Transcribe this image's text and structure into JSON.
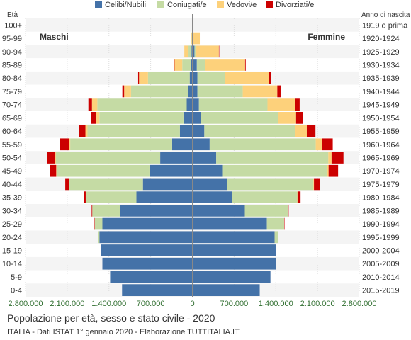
{
  "chart_data": {
    "type": "bar",
    "orientation": "horizontal-diverging",
    "title": "Popolazione per età, sesso e stato civile - 2020",
    "subtitle": "ITALIA - Dati ISTAT 1° gennaio 2020 - Elaborazione TUTTITALIA.IT",
    "left_axis_title": "Età",
    "right_axis_title": "Anno di nascita",
    "male_label": "Maschi",
    "female_label": "Femmine",
    "age_groups": [
      "100+",
      "95-99",
      "90-94",
      "85-89",
      "80-84",
      "75-79",
      "70-74",
      "65-69",
      "60-64",
      "55-59",
      "50-54",
      "45-49",
      "40-44",
      "35-39",
      "30-34",
      "25-29",
      "20-24",
      "15-19",
      "10-14",
      "5-9",
      "0-4"
    ],
    "birth_years": [
      "1919 o prima",
      "1920-1924",
      "1925-1929",
      "1930-1934",
      "1935-1939",
      "1940-1944",
      "1945-1949",
      "1950-1954",
      "1955-1959",
      "1960-1964",
      "1965-1969",
      "1970-1974",
      "1975-1979",
      "1980-1984",
      "1985-1989",
      "1990-1994",
      "1995-1999",
      "2000-2004",
      "2005-2009",
      "2010-2014",
      "2015-2019"
    ],
    "x_ticks": [
      {
        "value": -2800000,
        "label": "2.800.000"
      },
      {
        "value": -2100000,
        "label": "2.100.000"
      },
      {
        "value": -1400000,
        "label": "1.400.000"
      },
      {
        "value": -700000,
        "label": "700.000"
      },
      {
        "value": 0,
        "label": "0"
      },
      {
        "value": 700000,
        "label": "700.000"
      },
      {
        "value": 1400000,
        "label": "1.400.000"
      },
      {
        "value": 2100000,
        "label": "2.100.000"
      },
      {
        "value": 2800000,
        "label": "2.800.000"
      }
    ],
    "xlim": [
      -2800000,
      2800000
    ],
    "legend_position": "top",
    "series": [
      {
        "name": "Celibi/Nubili",
        "color": "#4472a8",
        "male": [
          2000,
          5000,
          15000,
          30000,
          45000,
          70000,
          95000,
          150000,
          210000,
          340000,
          540000,
          720000,
          830000,
          940000,
          1210000,
          1510000,
          1560000,
          1530000,
          1510000,
          1380000,
          1180000
        ],
        "female": [
          3000,
          10000,
          35000,
          75000,
          85000,
          85000,
          110000,
          140000,
          200000,
          290000,
          400000,
          500000,
          580000,
          670000,
          880000,
          1250000,
          1380000,
          1400000,
          1400000,
          1310000,
          1130000
        ]
      },
      {
        "name": "Coniugati/e",
        "color": "#c5dba4",
        "male": [
          1000,
          5000,
          50000,
          140000,
          700000,
          960000,
          1500000,
          1410000,
          1550000,
          1710000,
          1750000,
          1560000,
          1240000,
          850000,
          470000,
          130000,
          20000,
          0,
          0,
          0,
          0
        ],
        "female": [
          1000,
          5000,
          20000,
          140000,
          460000,
          760000,
          1150000,
          1300000,
          1530000,
          1780000,
          1880000,
          1760000,
          1450000,
          1090000,
          720000,
          290000,
          60000,
          5000,
          0,
          0,
          0
        ]
      },
      {
        "name": "Vedovi/e",
        "color": "#fdd17b",
        "male": [
          2000,
          15000,
          70000,
          130000,
          150000,
          115000,
          90000,
          60000,
          35000,
          20000,
          10000,
          5000,
          3000,
          0,
          0,
          0,
          0,
          0,
          0,
          0,
          0
        ],
        "female": [
          10000,
          110000,
          390000,
          670000,
          740000,
          580000,
          460000,
          300000,
          190000,
          100000,
          55000,
          25000,
          10000,
          5000,
          0,
          0,
          0,
          0,
          0,
          0,
          0
        ]
      },
      {
        "name": "Divorziati/e",
        "color": "#cc0000",
        "male": [
          0,
          0,
          0,
          5000,
          15000,
          30000,
          60000,
          80000,
          110000,
          150000,
          140000,
          110000,
          60000,
          30000,
          10000,
          3000,
          0,
          0,
          0,
          0,
          0
        ],
        "female": [
          0,
          0,
          3000,
          10000,
          30000,
          55000,
          80000,
          110000,
          145000,
          185000,
          200000,
          160000,
          100000,
          50000,
          15000,
          5000,
          0,
          0,
          0,
          0,
          0
        ]
      }
    ]
  }
}
